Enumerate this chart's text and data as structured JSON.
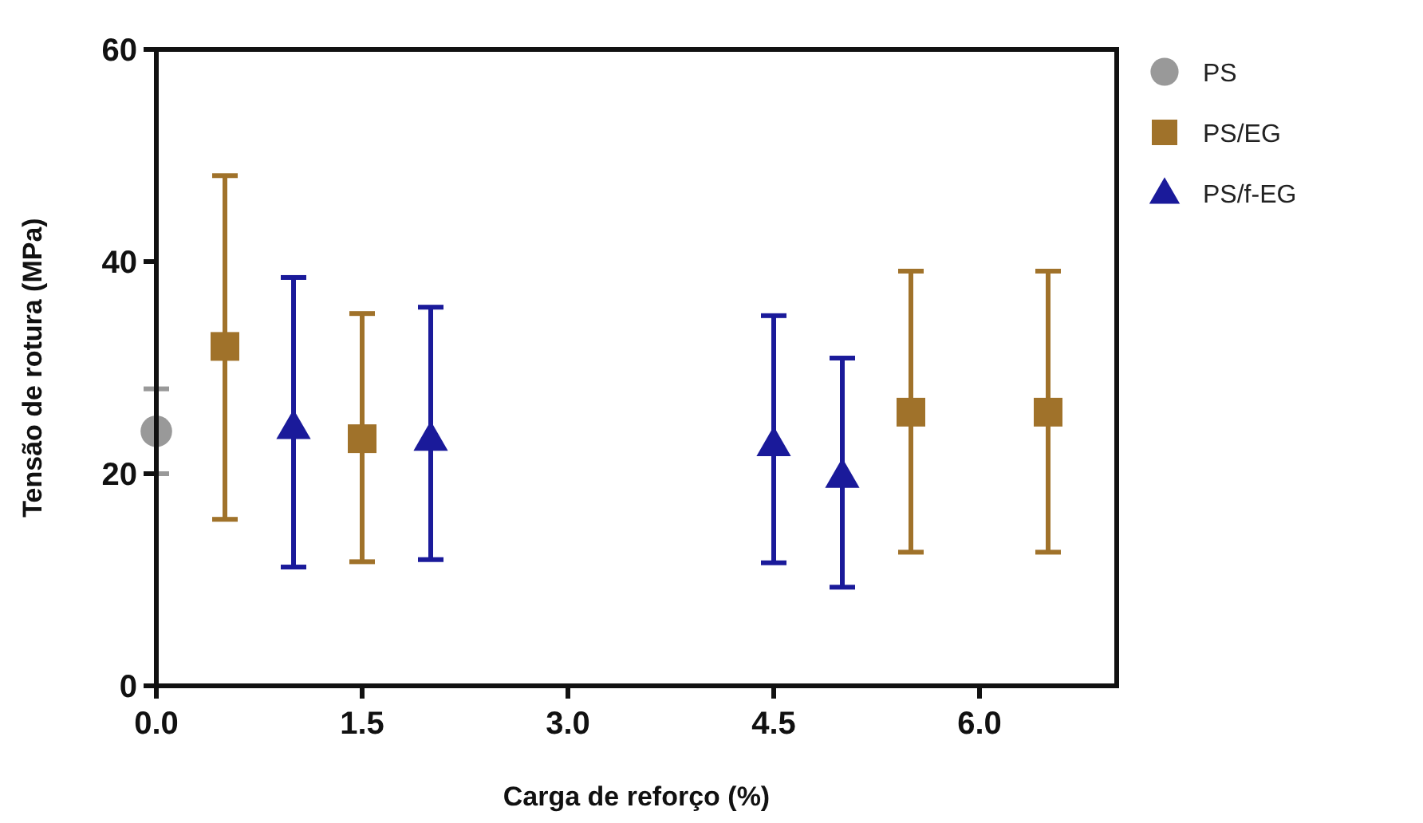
{
  "chart_data": {
    "type": "scatter",
    "xlabel": "Carga de reforço (%)",
    "ylabel": "Tensão de rotura (MPa)",
    "xlim": [
      0,
      7
    ],
    "xticks": [
      {
        "value": 0,
        "label": "0.0"
      },
      {
        "value": 1.5,
        "label": "1.5"
      },
      {
        "value": 3,
        "label": "3.0"
      },
      {
        "value": 4.5,
        "label": "4.5"
      },
      {
        "value": 6,
        "label": "6.0"
      }
    ],
    "ylim": [
      0,
      60
    ],
    "yticks": [
      0,
      20,
      40,
      60
    ],
    "grid": false,
    "legend": "right",
    "series": [
      {
        "name": "PS",
        "color": "#999999",
        "marker": "circle",
        "x": [
          0
        ],
        "values": [
          24
        ],
        "errors": [
          [
            20,
            28
          ]
        ]
      },
      {
        "name": "PS/EG",
        "color": "#a0722a",
        "marker": "square",
        "x": [
          0.5,
          1.5,
          5.5,
          6.5
        ],
        "values": [
          32,
          23.3,
          25.8,
          25.8
        ],
        "errors": [
          [
            15.7,
            48.1
          ],
          [
            11.7,
            35.1
          ],
          [
            12.6,
            39.1
          ],
          [
            12.6,
            39.1
          ]
        ]
      },
      {
        "name": "PS/f-EG",
        "color": "#1a1a9a",
        "marker": "triangle",
        "x": [
          1,
          2,
          4.5,
          5
        ],
        "values": [
          24.4,
          23.3,
          22.8,
          19.8
        ],
        "errors": [
          [
            11.2,
            38.5
          ],
          [
            11.9,
            35.7
          ],
          [
            11.6,
            34.9
          ],
          [
            9.3,
            30.9
          ]
        ]
      }
    ]
  }
}
